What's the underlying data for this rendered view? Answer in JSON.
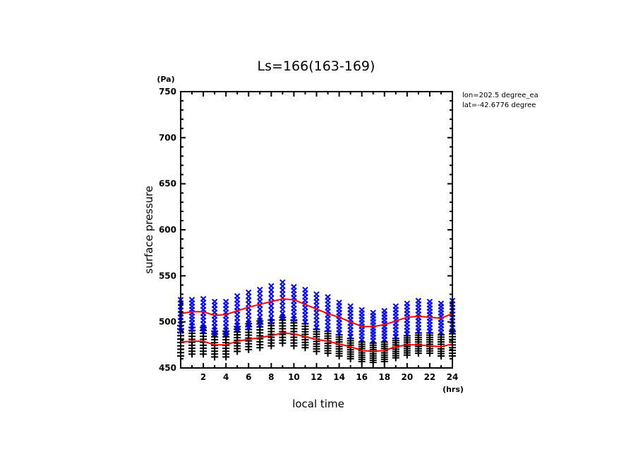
{
  "chart_data": {
    "type": "scatter",
    "title": "Ls=166(163-169)",
    "xlabel": "local time",
    "ylabel": "surface pressure",
    "x_unit": "(hrs)",
    "y_unit": "(Pa)",
    "xlim": [
      0,
      24
    ],
    "ylim": [
      450,
      750
    ],
    "x_ticks": [
      2,
      4,
      6,
      8,
      10,
      12,
      14,
      16,
      18,
      20,
      22,
      24
    ],
    "y_ticks": [
      450,
      500,
      550,
      600,
      650,
      700,
      750
    ],
    "annotations": [
      "lon=202.5 degree_ea",
      "lat=-42.6776 degree"
    ],
    "grid": false,
    "legend": "none",
    "colors": {
      "upper_markers": "#0000ff",
      "lower_markers": "#000000",
      "mean_lines": "#ff0000",
      "axes": "#000000"
    },
    "series": [
      {
        "name": "upper samples",
        "marker": "x",
        "x": [
          0,
          1,
          2,
          3,
          4,
          5,
          6,
          7,
          8,
          9,
          10,
          11,
          12,
          13,
          14,
          15,
          16,
          17,
          18,
          19,
          20,
          21,
          22,
          23,
          24
        ],
        "y_min": [
          490,
          492,
          490,
          487,
          487,
          492,
          494,
          497,
          500,
          505,
          503,
          500,
          494,
          492,
          488,
          484,
          481,
          480,
          481,
          484,
          487,
          490,
          490,
          489,
          490
        ],
        "y_max": [
          524,
          524,
          525,
          522,
          522,
          528,
          532,
          535,
          539,
          543,
          538,
          535,
          530,
          527,
          521,
          517,
          513,
          510,
          512,
          517,
          520,
          523,
          522,
          520,
          523
        ]
      },
      {
        "name": "lower samples",
        "marker": "+",
        "x": [
          0,
          1,
          2,
          3,
          4,
          5,
          6,
          7,
          8,
          9,
          10,
          11,
          12,
          13,
          14,
          15,
          16,
          17,
          18,
          19,
          20,
          21,
          22,
          23,
          24
        ],
        "y_min": [
          463,
          465,
          465,
          462,
          462,
          468,
          470,
          472,
          474,
          477,
          474,
          472,
          468,
          466,
          463,
          460,
          457,
          456,
          457,
          461,
          464,
          466,
          466,
          463,
          463
        ],
        "y_max": [
          496,
          494,
          494,
          490,
          490,
          495,
          498,
          501,
          502,
          505,
          502,
          498,
          492,
          490,
          486,
          482,
          478,
          477,
          478,
          482,
          485,
          488,
          488,
          486,
          490
        ]
      },
      {
        "name": "upper mean",
        "type": "line",
        "x": [
          0,
          1,
          2,
          3,
          4,
          5,
          6,
          7,
          8,
          9,
          10,
          11,
          12,
          13,
          14,
          15,
          16,
          17,
          18,
          19,
          20,
          21,
          22,
          23,
          24
        ],
        "y": [
          509,
          511,
          511,
          507,
          508,
          512,
          516,
          519,
          522,
          525,
          524,
          519,
          514,
          509,
          505,
          500,
          495,
          495,
          497,
          501,
          505,
          506,
          505,
          504,
          509
        ]
      },
      {
        "name": "lower mean",
        "type": "line",
        "x": [
          0,
          1,
          2,
          3,
          4,
          5,
          6,
          7,
          8,
          9,
          10,
          11,
          12,
          13,
          14,
          15,
          16,
          17,
          18,
          19,
          20,
          21,
          22,
          23,
          24
        ],
        "y": [
          478,
          479,
          479,
          475,
          475,
          479,
          481,
          483,
          485,
          488,
          487,
          484,
          481,
          479,
          476,
          473,
          469,
          468,
          469,
          473,
          475,
          475,
          474,
          473,
          476
        ]
      }
    ]
  }
}
